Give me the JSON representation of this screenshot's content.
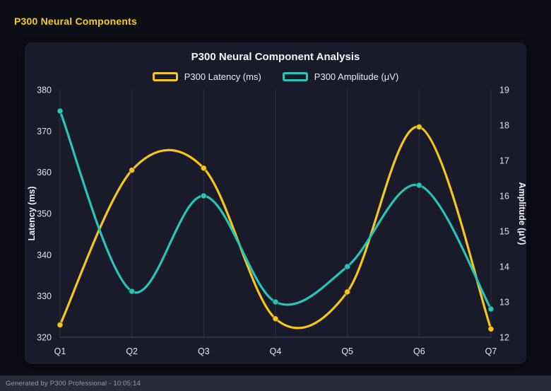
{
  "page": {
    "title": "P300 Neural Components",
    "footer": "Generated by P300 Professional - 10:05:14"
  },
  "colors": {
    "background": "#0c0d15",
    "panel": "#191b2b",
    "accent_yellow": "#f5c61d",
    "accent_teal": "#28c4b8",
    "footer_bar": "#282b39"
  },
  "chart_data": {
    "type": "line",
    "title": "P300 Neural Component Analysis",
    "categories": [
      "Q1",
      "Q2",
      "Q3",
      "Q4",
      "Q5",
      "Q6",
      "Q7"
    ],
    "series": [
      {
        "name": "P300 Latency (ms)",
        "axis": "left",
        "color": "#f5c61d",
        "values": [
          323,
          360.5,
          361,
          324.5,
          331,
          371,
          322
        ]
      },
      {
        "name": "P300 Amplitude (μV)",
        "axis": "right",
        "color": "#28c4b8",
        "values": [
          18.4,
          13.3,
          16.0,
          13.0,
          14.0,
          16.3,
          12.8
        ]
      }
    ],
    "left_axis": {
      "label": "Latency (ms)",
      "min": 320,
      "max": 380,
      "step": 10
    },
    "right_axis": {
      "label": "Amplitude (μV)",
      "min": 12,
      "max": 19,
      "step": 1
    },
    "legend_position": "top",
    "grid": "vertical",
    "smooth": true
  }
}
